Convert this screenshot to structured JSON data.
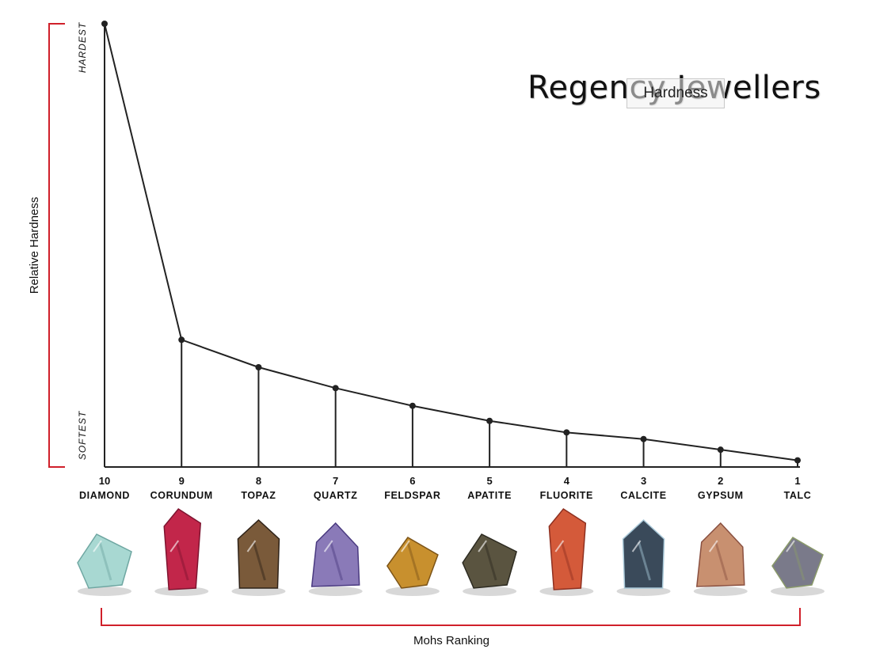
{
  "brand": "Regency Jewellers",
  "hardness_button": "Hardness",
  "chart_data": {
    "type": "line",
    "ylabel": "Relative Hardness",
    "xlabel": "Mohs Ranking",
    "y_top_label": "HARDEST",
    "y_bottom_label": "SOFTEST",
    "ylim": [
      0,
      1
    ],
    "categories": [
      {
        "rank": "10",
        "name": "DIAMOND"
      },
      {
        "rank": "9",
        "name": "CORUNDUM"
      },
      {
        "rank": "8",
        "name": "TOPAZ"
      },
      {
        "rank": "7",
        "name": "QUARTZ"
      },
      {
        "rank": "6",
        "name": "FELDSPAR"
      },
      {
        "rank": "5",
        "name": "APATITE"
      },
      {
        "rank": "4",
        "name": "FLUORITE"
      },
      {
        "rank": "3",
        "name": "CALCITE"
      },
      {
        "rank": "2",
        "name": "GYPSUM"
      },
      {
        "rank": "1",
        "name": "TALC"
      }
    ],
    "values": [
      1.0,
      0.287,
      0.225,
      0.178,
      0.138,
      0.104,
      0.078,
      0.063,
      0.039,
      0.015
    ]
  },
  "minerals": [
    {
      "name": "diamond",
      "color": "#a8d8d2",
      "dark": "#6fa7a2"
    },
    {
      "name": "corundum",
      "color": "#c2264a",
      "dark": "#7e1430"
    },
    {
      "name": "topaz",
      "color": "#7a5a3a",
      "dark": "#2e2218"
    },
    {
      "name": "quartz",
      "color": "#8a7ab8",
      "dark": "#4a3a80"
    },
    {
      "name": "feldspar",
      "color": "#c8902e",
      "dark": "#7c5418"
    },
    {
      "name": "apatite",
      "color": "#5a5440",
      "dark": "#2c2a20"
    },
    {
      "name": "fluorite",
      "color": "#d45a3a",
      "dark": "#8e3020"
    },
    {
      "name": "calcite",
      "color": "#3a4a5a",
      "dark": "#a8c8d8"
    },
    {
      "name": "gypsum",
      "color": "#c89070",
      "dark": "#8a5040"
    },
    {
      "name": "talc",
      "color": "#7a7a8a",
      "dark": "#8a9a6a"
    }
  ],
  "accent": "#d0202a"
}
